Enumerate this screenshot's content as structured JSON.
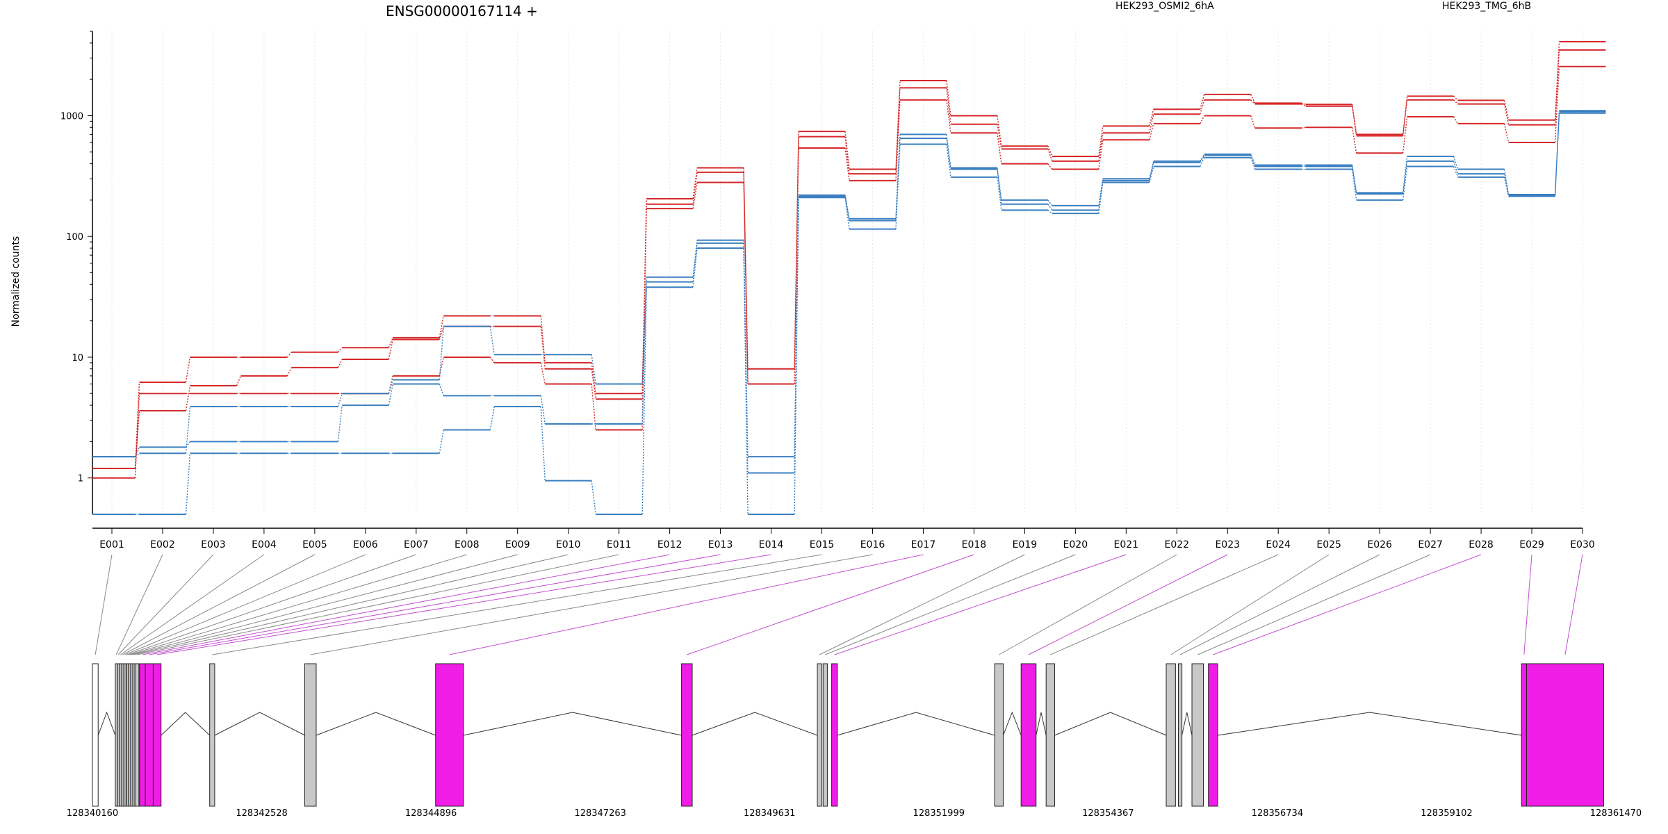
{
  "chart_data": {
    "type": "line",
    "title": "ENSG00000167114 +",
    "xlabel": "",
    "ylabel": "Normalized counts",
    "yscale": "log",
    "ylim": [
      0.5,
      5000
    ],
    "yticks": [
      1,
      10,
      100,
      1000
    ],
    "ytick_labels": [
      "1",
      "10",
      "100",
      "1000"
    ],
    "grid": "vertical dotted lines at each exon",
    "legend_placement": "top-right",
    "categories": [
      "E001",
      "E002",
      "E003",
      "E004",
      "E005",
      "E006",
      "E007",
      "E008",
      "E009",
      "E010",
      "E011",
      "E012",
      "E013",
      "E014",
      "E015",
      "E016",
      "E017",
      "E018",
      "E019",
      "E020",
      "E021",
      "E022",
      "E023",
      "E024",
      "E025",
      "E026",
      "E027",
      "E028",
      "E029",
      "E030"
    ],
    "groups": [
      {
        "name": "HEK293_OSMI2_6hA",
        "color": "#d62728"
      },
      {
        "name": "HEK293_TMG_6hB",
        "color": "#3a7fc1"
      }
    ],
    "series": [
      {
        "group": 0,
        "values": [
          1.0,
          5.0,
          5.0,
          5.0,
          5.0,
          5.0,
          7.0,
          10.0,
          9.0,
          6.0,
          2.5,
          170,
          280,
          6.0,
          540,
          290,
          1350,
          720,
          400,
          360,
          630,
          860,
          1000,
          790,
          800,
          490,
          980,
          860,
          600,
          2550
        ]
      },
      {
        "group": 0,
        "values": [
          1.2,
          3.6,
          5.8,
          7.0,
          8.2,
          9.6,
          14.0,
          18.0,
          18.0,
          8.0,
          4.5,
          185,
          340,
          6.0,
          670,
          330,
          1700,
          850,
          530,
          420,
          720,
          1030,
          1350,
          1250,
          1200,
          680,
          1350,
          1250,
          840,
          3500
        ]
      },
      {
        "group": 0,
        "values": [
          1.2,
          6.2,
          10.0,
          10.0,
          11.0,
          12.0,
          14.5,
          22.0,
          22.0,
          9.0,
          5.0,
          205,
          370,
          8.0,
          740,
          360,
          1950,
          1000,
          560,
          460,
          820,
          1130,
          1500,
          1270,
          1240,
          700,
          1450,
          1340,
          920,
          4100
        ]
      },
      {
        "group": 1,
        "values": [
          0.5,
          0.5,
          1.6,
          1.6,
          1.6,
          1.6,
          1.6,
          2.5,
          3.9,
          0.95,
          0.5,
          38,
          80,
          0.5,
          210,
          115,
          580,
          310,
          165,
          155,
          280,
          380,
          450,
          360,
          360,
          200,
          380,
          310,
          215,
          1050
        ]
      },
      {
        "group": 1,
        "values": [
          1.5,
          1.8,
          2.0,
          2.0,
          2.0,
          4.0,
          6.0,
          4.8,
          4.8,
          2.8,
          2.8,
          42,
          88,
          1.1,
          215,
          135,
          650,
          360,
          185,
          165,
          290,
          410,
          470,
          380,
          380,
          225,
          420,
          330,
          220,
          1080
        ]
      },
      {
        "group": 1,
        "values": [
          1.5,
          1.6,
          3.9,
          3.9,
          3.9,
          5.0,
          6.5,
          18.0,
          10.5,
          10.5,
          6.0,
          46,
          93,
          1.5,
          220,
          140,
          700,
          370,
          200,
          180,
          300,
          420,
          480,
          390,
          390,
          230,
          460,
          360,
          222,
          1100
        ]
      }
    ],
    "exon_map_colors": {
      "constitutive": "#c8c8c8",
      "differential": "#f01de6",
      "connector_plain": "#888888",
      "connector_differential": "#c24fcf"
    },
    "exons": [
      {
        "id": "E001",
        "start": 128340160,
        "end": 128340240,
        "fill": "#ffffff",
        "hl": false
      },
      {
        "id": "E002",
        "start": 128340480,
        "end": 128340505,
        "fill": "#c8c8c8",
        "hl": false
      },
      {
        "id": "E003",
        "start": 128340510,
        "end": 128340530,
        "fill": "#c8c8c8",
        "hl": false
      },
      {
        "id": "E004",
        "start": 128340540,
        "end": 128340565,
        "fill": "#c8c8c8",
        "hl": false
      },
      {
        "id": "E005",
        "start": 128340570,
        "end": 128340595,
        "fill": "#c8c8c8",
        "hl": false
      },
      {
        "id": "E006",
        "start": 128340600,
        "end": 128340630,
        "fill": "#c8c8c8",
        "hl": false
      },
      {
        "id": "E007",
        "start": 128340635,
        "end": 128340660,
        "fill": "#c8c8c8",
        "hl": false
      },
      {
        "id": "E008",
        "start": 128340665,
        "end": 128340690,
        "fill": "#c8c8c8",
        "hl": false
      },
      {
        "id": "E009",
        "start": 128340695,
        "end": 128340720,
        "fill": "#c8c8c8",
        "hl": false
      },
      {
        "id": "E010",
        "start": 128340725,
        "end": 128340750,
        "fill": "#c8c8c8",
        "hl": false
      },
      {
        "id": "E011",
        "start": 128340755,
        "end": 128340810,
        "fill": "#c8c8c8",
        "hl": false
      },
      {
        "id": "E012",
        "start": 128340820,
        "end": 128340900,
        "fill": "#f01de6",
        "hl": true
      },
      {
        "id": "E013",
        "start": 128340900,
        "end": 128341010,
        "fill": "#f01de6",
        "hl": true
      },
      {
        "id": "E014",
        "start": 128341010,
        "end": 128341120,
        "fill": "#f01de6",
        "hl": true
      },
      {
        "id": "E015",
        "start": 128341800,
        "end": 128341870,
        "fill": "#c8c8c8",
        "hl": false
      },
      {
        "id": "E016",
        "start": 128343130,
        "end": 128343290,
        "fill": "#c8c8c8",
        "hl": false
      },
      {
        "id": "E017",
        "start": 128344960,
        "end": 128345350,
        "fill": "#f01de6",
        "hl": true
      },
      {
        "id": "E018",
        "start": 128348400,
        "end": 128348550,
        "fill": "#f01de6",
        "hl": true
      },
      {
        "id": "E019",
        "start": 128350300,
        "end": 128350360,
        "fill": "#c8c8c8",
        "hl": false
      },
      {
        "id": "E020",
        "start": 128350380,
        "end": 128350440,
        "fill": "#c8c8c8",
        "hl": false
      },
      {
        "id": "E021",
        "start": 128350500,
        "end": 128350580,
        "fill": "#f01de6",
        "hl": true
      },
      {
        "id": "E022",
        "start": 128352780,
        "end": 128352900,
        "fill": "#c8c8c8",
        "hl": false
      },
      {
        "id": "E023",
        "start": 128353150,
        "end": 128353360,
        "fill": "#f01de6",
        "hl": true
      },
      {
        "id": "E024",
        "start": 128353500,
        "end": 128353620,
        "fill": "#c8c8c8",
        "hl": false
      },
      {
        "id": "E025",
        "start": 128355180,
        "end": 128355310,
        "fill": "#c8c8c8",
        "hl": false
      },
      {
        "id": "E026",
        "start": 128355350,
        "end": 128355400,
        "fill": "#c8c8c8",
        "hl": false
      },
      {
        "id": "E027",
        "start": 128355540,
        "end": 128355700,
        "fill": "#c8c8c8",
        "hl": false
      },
      {
        "id": "E028",
        "start": 128355770,
        "end": 128355900,
        "fill": "#f01de6",
        "hl": true
      },
      {
        "id": "E029",
        "start": 128360150,
        "end": 128360220,
        "fill": "#f01de6",
        "hl": true
      },
      {
        "id": "E030",
        "start": 128360220,
        "end": 128361300,
        "fill": "#f01de6",
        "hl": true
      }
    ],
    "coord_range": [
      128340160,
      128361470
    ],
    "coord_ticks": [
      "128340160",
      "128342528",
      "128344896",
      "128347263",
      "128349631",
      "128351999",
      "128354367",
      "128356734",
      "128359102",
      "128361470"
    ]
  }
}
